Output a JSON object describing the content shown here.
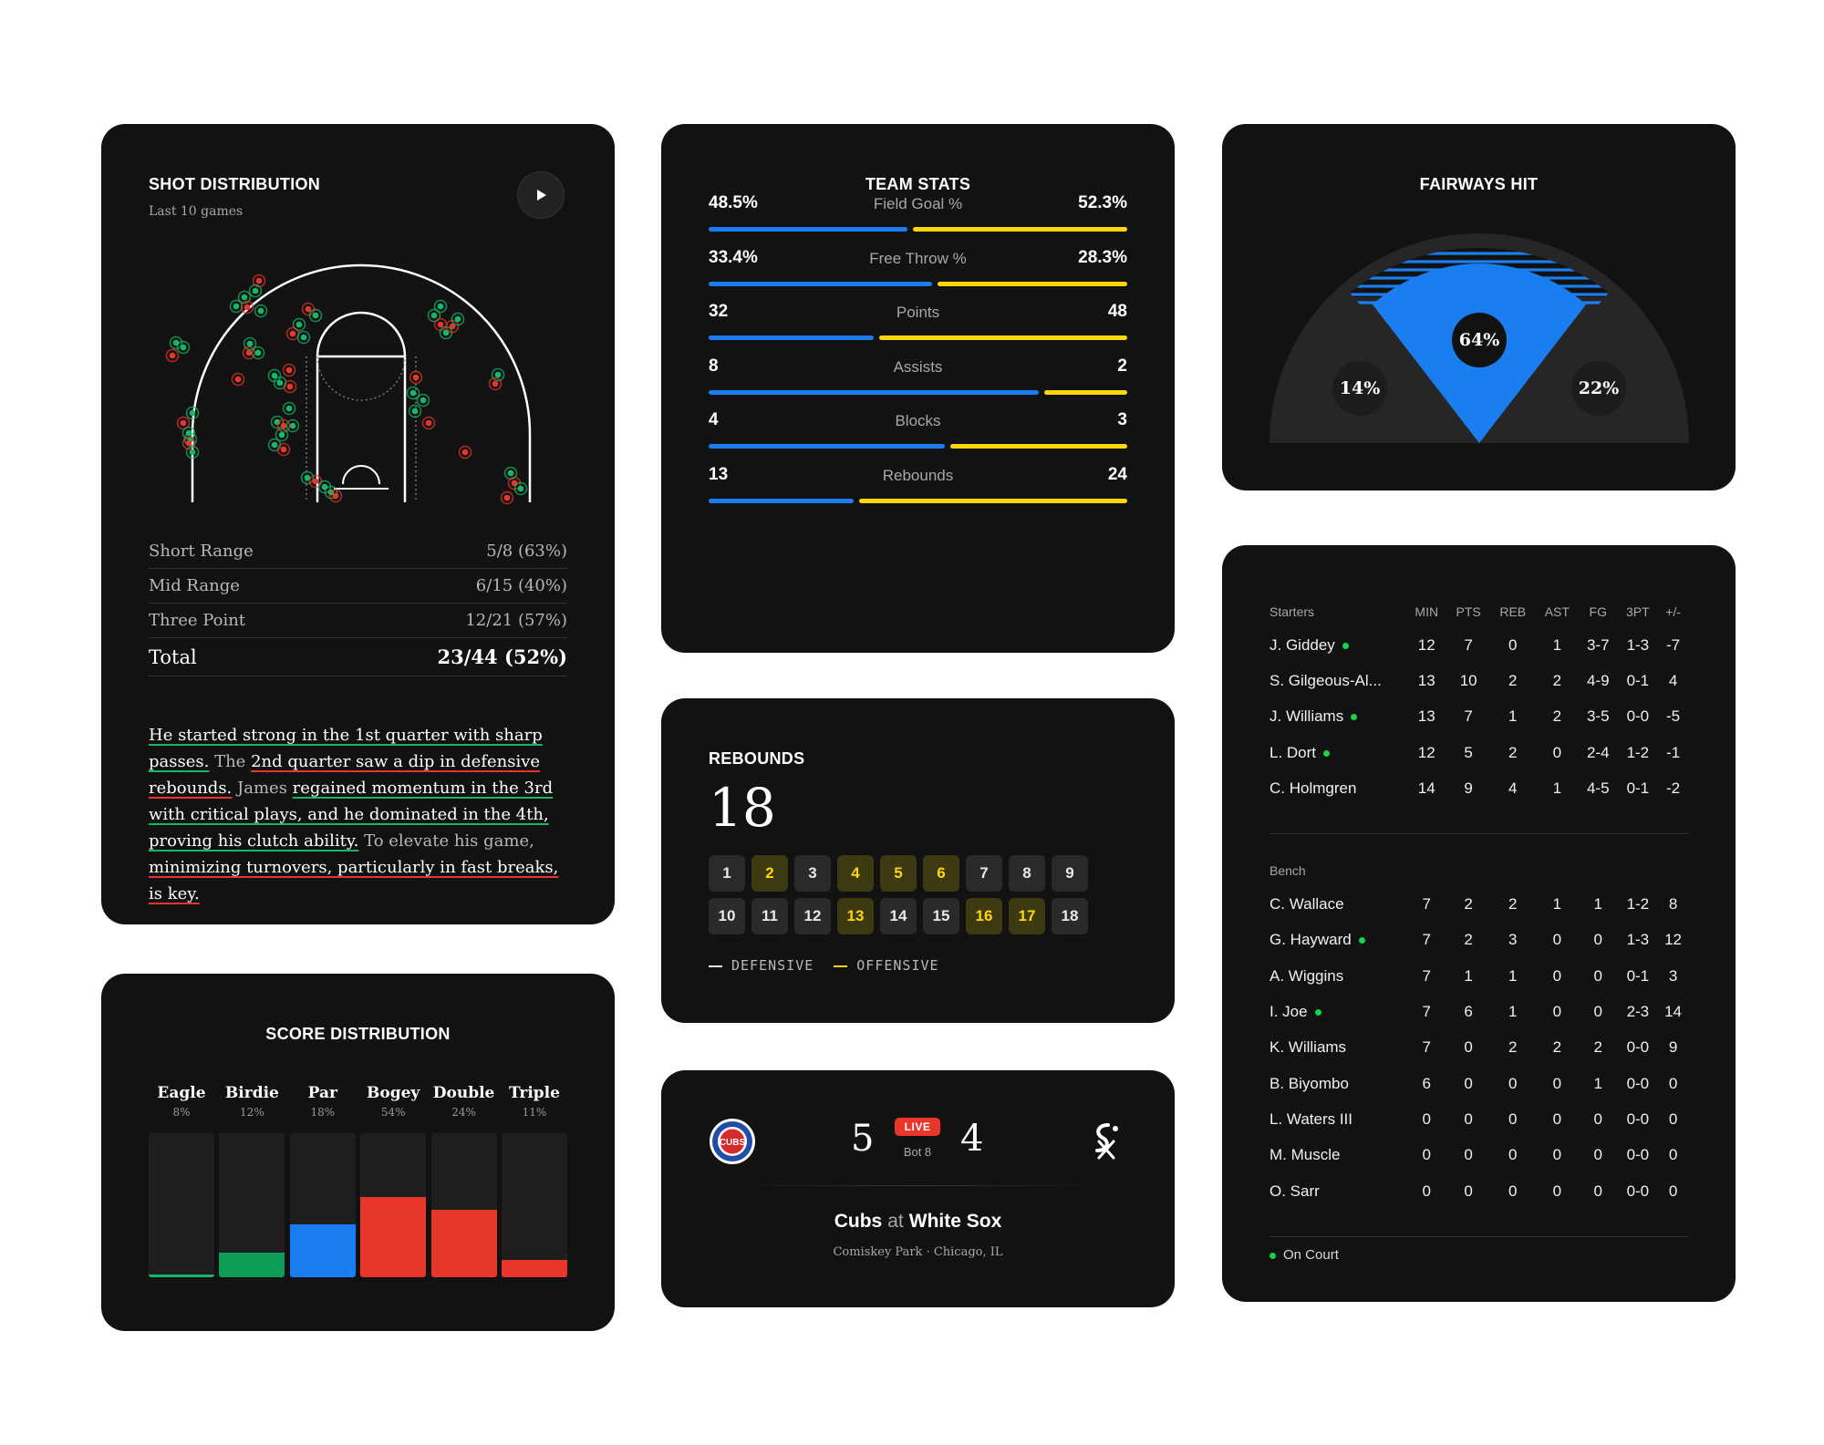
{
  "shot": {
    "title": "SHOT DISTRIBUTION",
    "subtitle": "Last 10 games",
    "rows": [
      {
        "label": "Short Range",
        "value": "5/8 (63%)"
      },
      {
        "label": "Mid Range",
        "value": "6/15 (40%)"
      },
      {
        "label": "Three Point",
        "value": "12/21 (57%)"
      }
    ],
    "total_label": "Total",
    "total_value": "23/44 (52%)",
    "para": {
      "p1": "He started strong in the 1st quarter with sharp passes.",
      "p2": "The ",
      "p3": "2nd quarter saw a dip in defensive rebounds.",
      "p4": "James ",
      "p5": "regained momentum in the 3rd with critical plays, and he dominated in the 4th, proving his clutch ability.",
      "p6": " To elevate his game, ",
      "p7": "minimizing turnovers, particularly in fast breaks, is key."
    },
    "colors": {
      "made": "#14b86b",
      "missed": "#e8362b"
    }
  },
  "team": {
    "title": "TEAM STATS",
    "stats": [
      {
        "label": "Field Goal %",
        "left": "48.5%",
        "right": "52.3%",
        "lval": 48.5,
        "rval": 52.3
      },
      {
        "label": "Free Throw %",
        "left": "33.4%",
        "right": "28.3%",
        "lval": 33.4,
        "rval": 28.3
      },
      {
        "label": "Points",
        "left": "32",
        "right": "48",
        "lval": 32,
        "rval": 48
      },
      {
        "label": "Assists",
        "left": "8",
        "right": "2",
        "lval": 8,
        "rval": 2
      },
      {
        "label": "Blocks",
        "left": "4",
        "right": "3",
        "lval": 4,
        "rval": 3
      },
      {
        "label": "Rebounds",
        "left": "13",
        "right": "24",
        "lval": 13,
        "rval": 24
      }
    ],
    "colors": {
      "left": "#1a7ef0",
      "right": "#ffd60a"
    }
  },
  "rebounds": {
    "title": "REBOUNDS",
    "total": "18",
    "cells": [
      "1",
      "2",
      "3",
      "4",
      "5",
      "6",
      "7",
      "8",
      "9",
      "10",
      "11",
      "12",
      "13",
      "14",
      "15",
      "16",
      "17",
      "18"
    ],
    "offensive": [
      "2",
      "4",
      "5",
      "6",
      "13",
      "16",
      "17"
    ],
    "legend_defensive": "DEFENSIVE",
    "legend_offensive": "OFFENSIVE"
  },
  "score": {
    "title": "SCORE DISTRIBUTION",
    "items": [
      {
        "name": "Eagle",
        "pct": "8%",
        "level": 0.02,
        "color": "#14b86b"
      },
      {
        "name": "Birdie",
        "pct": "12%",
        "level": 0.17,
        "color": "#0f9d58"
      },
      {
        "name": "Par",
        "pct": "18%",
        "level": 0.37,
        "color": "#1a7ef0"
      },
      {
        "name": "Bogey",
        "pct": "54%",
        "level": 0.56,
        "color": "#e8362b"
      },
      {
        "name": "Double",
        "pct": "24%",
        "level": 0.47,
        "color": "#e8362b"
      },
      {
        "name": "Triple",
        "pct": "11%",
        "level": 0.12,
        "color": "#e8362b"
      }
    ]
  },
  "game": {
    "home_score": "5",
    "away_score": "4",
    "live": "LIVE",
    "inning": "Bot 8",
    "team1": "Cubs",
    "at": "at",
    "team2": "White Sox",
    "venue": "Comiskey Park · Chicago, IL",
    "logo1_text": "CUBS",
    "logo1_icon": "cubs-logo-icon",
    "logo2_icon": "white-sox-logo-icon"
  },
  "fairways": {
    "title": "FAIRWAYS HIT",
    "left": "14%",
    "center": "64%",
    "right": "22%",
    "colors": {
      "hit": "#1a7ef0",
      "miss": "#262626"
    }
  },
  "box": {
    "starters_label": "Starters",
    "bench_label": "Bench",
    "columns": [
      "MIN",
      "PTS",
      "REB",
      "AST",
      "FG",
      "3PT",
      "+/-"
    ],
    "starters": [
      {
        "name": "J. Giddey",
        "on": true,
        "v": [
          "12",
          "7",
          "0",
          "1",
          "3-7",
          "1-3",
          "-7"
        ]
      },
      {
        "name": "S. Gilgeous-Al...",
        "on": false,
        "v": [
          "13",
          "10",
          "2",
          "2",
          "4-9",
          "0-1",
          "4"
        ]
      },
      {
        "name": "J. Williams",
        "on": true,
        "v": [
          "13",
          "7",
          "1",
          "2",
          "3-5",
          "0-0",
          "-5"
        ]
      },
      {
        "name": "L. Dort",
        "on": true,
        "v": [
          "12",
          "5",
          "2",
          "0",
          "2-4",
          "1-2",
          "-1"
        ]
      },
      {
        "name": "C. Holmgren",
        "on": false,
        "v": [
          "14",
          "9",
          "4",
          "1",
          "4-5",
          "0-1",
          "-2"
        ]
      }
    ],
    "bench": [
      {
        "name": "C. Wallace",
        "on": false,
        "v": [
          "7",
          "2",
          "2",
          "1",
          "1",
          "1-2",
          "8"
        ]
      },
      {
        "name": "G. Hayward",
        "on": true,
        "v": [
          "7",
          "2",
          "3",
          "0",
          "0",
          "1-3",
          "12"
        ]
      },
      {
        "name": "A. Wiggins",
        "on": false,
        "v": [
          "7",
          "1",
          "1",
          "0",
          "0",
          "0-1",
          "3"
        ]
      },
      {
        "name": "I. Joe",
        "on": true,
        "v": [
          "7",
          "6",
          "1",
          "0",
          "0",
          "2-3",
          "14"
        ]
      },
      {
        "name": "K. Williams",
        "on": false,
        "v": [
          "7",
          "0",
          "2",
          "2",
          "2",
          "0-0",
          "9"
        ]
      },
      {
        "name": "B. Biyombo",
        "on": false,
        "v": [
          "6",
          "0",
          "0",
          "0",
          "1",
          "0-0",
          "0"
        ]
      },
      {
        "name": "L. Waters III",
        "on": false,
        "v": [
          "0",
          "0",
          "0",
          "0",
          "0",
          "0-0",
          "0"
        ]
      },
      {
        "name": "M. Muscle",
        "on": false,
        "v": [
          "0",
          "0",
          "0",
          "0",
          "0",
          "0-0",
          "0"
        ]
      },
      {
        "name": "O. Sarr",
        "on": false,
        "v": [
          "0",
          "0",
          "0",
          "0",
          "0",
          "0-0",
          "0"
        ]
      }
    ],
    "on_court_label": "On Court",
    "on_court_color": "#14d44a"
  }
}
